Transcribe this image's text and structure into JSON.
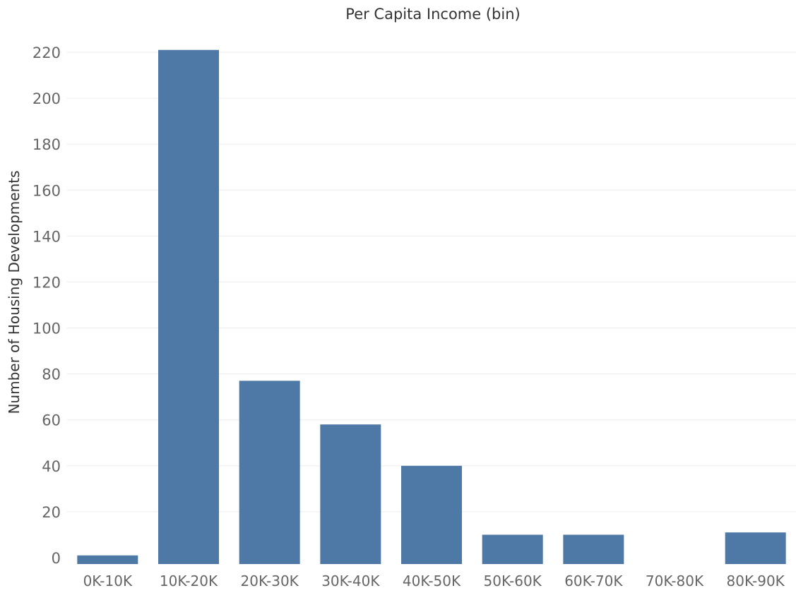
{
  "chart_data": {
    "type": "bar",
    "title": "Per Capita Income (bin)",
    "xlabel": "Per Capita Income (bin)",
    "ylabel": "Number of Housing Developments",
    "categories": [
      "0K-10K",
      "10K-20K",
      "20K-30K",
      "30K-40K",
      "40K-50K",
      "50K-60K",
      "60K-70K",
      "70K-80K",
      "80K-90K"
    ],
    "values": [
      1,
      221,
      77,
      58,
      40,
      10,
      10,
      0,
      11
    ],
    "ylim": [
      -5,
      230
    ],
    "yticks": [
      0,
      20,
      40,
      60,
      80,
      100,
      120,
      140,
      160,
      180,
      200,
      220
    ],
    "grid": true,
    "legend": "none",
    "colors": {
      "bar": "#4e79a7",
      "grid": "#ececec"
    }
  }
}
